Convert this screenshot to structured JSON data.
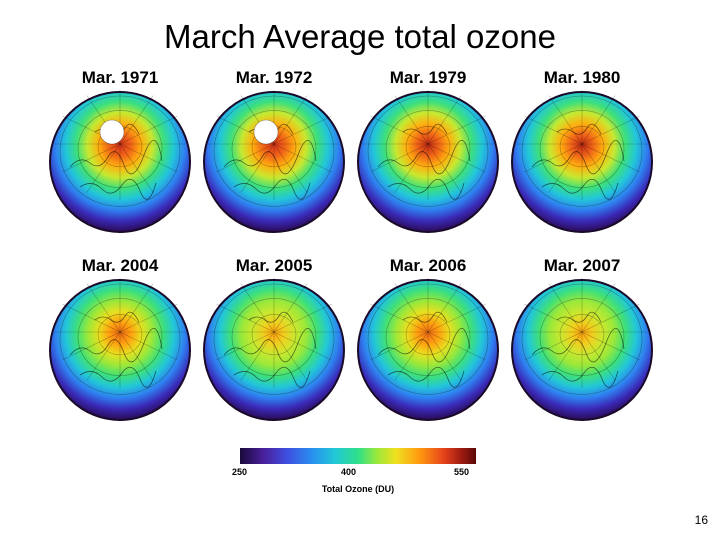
{
  "title": "March Average total ozone",
  "panels": [
    {
      "label": "Mar. 1971",
      "style": "high-hole"
    },
    {
      "label": "Mar. 1972",
      "style": "high-hole"
    },
    {
      "label": "Mar. 1979",
      "style": "high"
    },
    {
      "label": "Mar. 1980",
      "style": "high"
    },
    {
      "label": "Mar. 2004",
      "style": "mixed"
    },
    {
      "label": "Mar. 2005",
      "style": "low"
    },
    {
      "label": "Mar. 2006",
      "style": "mixed"
    },
    {
      "label": "Mar. 2007",
      "style": "low"
    }
  ],
  "colorbar": {
    "min_label": "250",
    "mid_label": "400",
    "max_label": "550",
    "label": "Total Ozone (DU)"
  },
  "page_number": "16"
}
